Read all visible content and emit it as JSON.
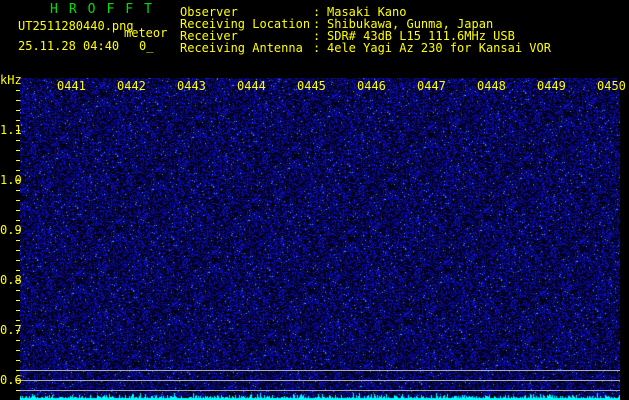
{
  "header": {
    "app_title": "HROFFT",
    "filename": "UT2511280440.png",
    "mode": "meteor",
    "datetime": "25.11.28 04:40",
    "count": "0_",
    "info": [
      {
        "label": "Observer",
        "value": "Masaki Kano"
      },
      {
        "label": "Receiving Location",
        "value": "Shibukawa, Gunma, Japan"
      },
      {
        "label": "Receiver",
        "value": "SDR# 43dB L15 111.6MHz USB"
      },
      {
        "label": "Receiving Antenna",
        "value": "4ele Yagi Az 230 for Kansai VOR"
      }
    ]
  },
  "spectrogram": {
    "y_unit": "kHz",
    "y_ticks": [
      "1.1",
      "1.0",
      "0.9",
      "0.8",
      "0.7",
      "0.6"
    ],
    "time_labels": [
      "0441",
      "0442",
      "0443",
      "0444",
      "0445",
      "0446",
      "0447",
      "0448",
      "0449",
      "0450"
    ],
    "colors": {
      "background": "#000000",
      "noise": "#1010e0",
      "bright": "#40a0ff",
      "baseline": "#00ffff",
      "labels": "#ffff00",
      "title": "#00e000"
    }
  }
}
